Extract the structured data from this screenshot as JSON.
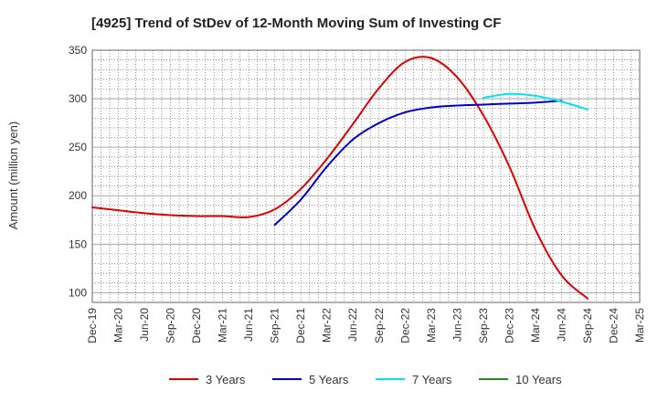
{
  "chart_data": {
    "type": "line",
    "title": "[4925]  Trend of StDev of 12-Month Moving Sum of Investing CF",
    "ylabel": "Amount (million yen)",
    "xlabel": "",
    "ylim": [
      90,
      350
    ],
    "yticks": [
      100,
      150,
      200,
      250,
      300,
      350
    ],
    "grid": true,
    "legend_position": "bottom",
    "x_categories": [
      "Dec-19",
      "Mar-20",
      "Jun-20",
      "Sep-20",
      "Dec-20",
      "Mar-21",
      "Jun-21",
      "Sep-21",
      "Dec-21",
      "Mar-22",
      "Jun-22",
      "Sep-22",
      "Dec-22",
      "Mar-23",
      "Jun-23",
      "Sep-23",
      "Dec-23",
      "Mar-24",
      "Jun-24",
      "Sep-24",
      "Dec-24",
      "Mar-25"
    ],
    "series": [
      {
        "name": "3 Years",
        "color": "#e00000",
        "start_index": 0,
        "values": [
          188,
          185,
          182,
          180,
          179,
          179,
          178,
          186,
          207,
          238,
          274,
          311,
          338,
          342,
          322,
          283,
          230,
          165,
          118,
          94
        ]
      },
      {
        "name": "5 Years",
        "color": "#0000cc",
        "start_index": 7,
        "values": [
          170,
          196,
          230,
          258,
          275,
          286,
          291,
          293,
          294,
          295,
          296,
          298
        ]
      },
      {
        "name": "7 Years",
        "color": "#00e5ee",
        "start_index": 15,
        "values": [
          301,
          305,
          303,
          297,
          289
        ]
      },
      {
        "name": "10 Years",
        "color": "#228b22",
        "start_index": 0,
        "values": []
      }
    ]
  }
}
